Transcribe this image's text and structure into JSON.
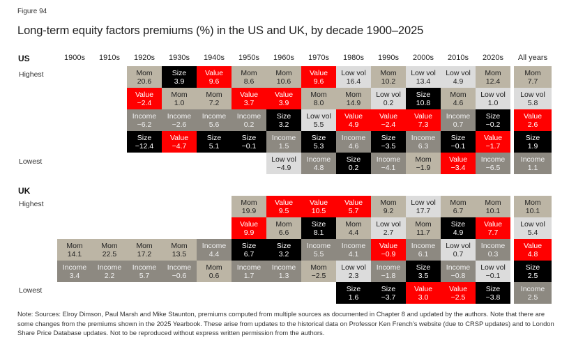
{
  "figure_label": "Figure 94",
  "title": "Long-term equity factors premiums (%) in the US and UK, by decade 1900–2025",
  "factor_colors": {
    "Mom": {
      "bg": "#bcb5a5",
      "fg": "#222222"
    },
    "Value": {
      "bg": "#ff0000",
      "fg": "#ffffff"
    },
    "Size": {
      "bg": "#000000",
      "fg": "#ffffff"
    },
    "Income": {
      "bg": "#8d8981",
      "fg": "#f0f0f0"
    },
    "Low vol": {
      "bg": "#dcdcdc",
      "fg": "#222222"
    }
  },
  "rank_labels": {
    "highest": "Highest",
    "lowest": "Lowest"
  },
  "note": "Note: Sources: Elroy Dimson, Paul Marsh and Mike Staunton, premiums computed from multiple sources as documented in Chapter 8 and updated by the authors. Note that there are some changes from the premiums shown in the 2025 Yearbook. These arise from updates to the historical data on Professor Ken French’s website (due to CRSP updates) and to London Share Price Database updates. Not to be reproduced without express written permission from the authors.",
  "chart_data": {
    "type": "table",
    "title": "Long-term equity factors premiums (%) in the US and UK, by decade 1900–2025",
    "columns": [
      "1900s",
      "1910s",
      "1920s",
      "1930s",
      "1940s",
      "1950s",
      "1960s",
      "1970s",
      "1980s",
      "1990s",
      "2000s",
      "2010s",
      "2020s",
      "All years"
    ],
    "row_order": "ranked highest (top) to lowest (bottom), 5 ranks",
    "regions": [
      {
        "name": "US",
        "columns": [
          [
            null,
            null,
            null,
            null,
            null
          ],
          [
            null,
            null,
            null,
            null,
            null
          ],
          [
            {
              "f": "Mom",
              "v": "20.6"
            },
            {
              "f": "Value",
              "v": "−2.4"
            },
            {
              "f": "Income",
              "v": "−6.2"
            },
            {
              "f": "Size",
              "v": "−12.4"
            },
            null
          ],
          [
            {
              "f": "Size",
              "v": "3.9"
            },
            {
              "f": "Mom",
              "v": "1.0"
            },
            {
              "f": "Income",
              "v": "−2.6"
            },
            {
              "f": "Value",
              "v": "−4.7"
            },
            null
          ],
          [
            {
              "f": "Value",
              "v": "9.6"
            },
            {
              "f": "Mom",
              "v": "7.2"
            },
            {
              "f": "Income",
              "v": "5.6"
            },
            {
              "f": "Size",
              "v": "5.1"
            },
            null
          ],
          [
            {
              "f": "Mom",
              "v": "8.6"
            },
            {
              "f": "Value",
              "v": "3.7"
            },
            {
              "f": "Income",
              "v": "0.2"
            },
            {
              "f": "Size",
              "v": "−0.1"
            },
            null
          ],
          [
            {
              "f": "Mom",
              "v": "10.6"
            },
            {
              "f": "Value",
              "v": "3.9"
            },
            {
              "f": "Size",
              "v": "3.2"
            },
            {
              "f": "Income",
              "v": "1.5"
            },
            {
              "f": "Low vol",
              "v": "−4.9"
            }
          ],
          [
            {
              "f": "Value",
              "v": "9.6"
            },
            {
              "f": "Mom",
              "v": "8.0"
            },
            {
              "f": "Low vol",
              "v": "5.5"
            },
            {
              "f": "Size",
              "v": "5.3"
            },
            {
              "f": "Income",
              "v": "4.8"
            }
          ],
          [
            {
              "f": "Low vol",
              "v": "16.4"
            },
            {
              "f": "Mom",
              "v": "14.9"
            },
            {
              "f": "Value",
              "v": "4.9"
            },
            {
              "f": "Income",
              "v": "4.6"
            },
            {
              "f": "Size",
              "v": "0.2"
            }
          ],
          [
            {
              "f": "Mom",
              "v": "10.2"
            },
            {
              "f": "Low vol",
              "v": "0.2"
            },
            {
              "f": "Value",
              "v": "−2.4"
            },
            {
              "f": "Size",
              "v": "−3.5"
            },
            {
              "f": "Income",
              "v": "−4.1"
            }
          ],
          [
            {
              "f": "Low vol",
              "v": "13.4"
            },
            {
              "f": "Size",
              "v": "10.8"
            },
            {
              "f": "Value",
              "v": "7.3"
            },
            {
              "f": "Income",
              "v": "6.3"
            },
            {
              "f": "Mom",
              "v": "−1.9"
            }
          ],
          [
            {
              "f": "Low vol",
              "v": "4.9"
            },
            {
              "f": "Mom",
              "v": "4.6"
            },
            {
              "f": "Income",
              "v": "0.7"
            },
            {
              "f": "Size",
              "v": "−0.1"
            },
            {
              "f": "Value",
              "v": "−3.4"
            }
          ],
          [
            {
              "f": "Mom",
              "v": "12.4"
            },
            {
              "f": "Low vol",
              "v": "1.0"
            },
            {
              "f": "Size",
              "v": "−0.2"
            },
            {
              "f": "Value",
              "v": "−1.7"
            },
            {
              "f": "Income",
              "v": "−6.5"
            }
          ],
          [
            {
              "f": "Mom",
              "v": "7.7"
            },
            {
              "f": "Low vol",
              "v": "5.8"
            },
            {
              "f": "Value",
              "v": "2.6"
            },
            {
              "f": "Size",
              "v": "1.9"
            },
            {
              "f": "Income",
              "v": "1.1"
            }
          ]
        ]
      },
      {
        "name": "UK",
        "columns": [
          [
            null,
            null,
            {
              "f": "Mom",
              "v": "14.1"
            },
            {
              "f": "Income",
              "v": "3.4"
            },
            null
          ],
          [
            null,
            null,
            {
              "f": "Mom",
              "v": "22.5"
            },
            {
              "f": "Income",
              "v": "2.2"
            },
            null
          ],
          [
            null,
            null,
            {
              "f": "Mom",
              "v": "17.2"
            },
            {
              "f": "Income",
              "v": "5.7"
            },
            null
          ],
          [
            null,
            null,
            {
              "f": "Mom",
              "v": "13.5"
            },
            {
              "f": "Income",
              "v": "−0.6"
            },
            null
          ],
          [
            null,
            null,
            {
              "f": "Income",
              "v": "4.4"
            },
            {
              "f": "Mom",
              "v": "0.6"
            },
            null
          ],
          [
            {
              "f": "Mom",
              "v": "19.9"
            },
            {
              "f": "Value",
              "v": "9.9"
            },
            {
              "f": "Size",
              "v": "6.7"
            },
            {
              "f": "Income",
              "v": "1.7"
            },
            null
          ],
          [
            {
              "f": "Value",
              "v": "9.5"
            },
            {
              "f": "Mom",
              "v": "6.6"
            },
            {
              "f": "Size",
              "v": "3.2"
            },
            {
              "f": "Income",
              "v": "1.3"
            },
            null
          ],
          [
            {
              "f": "Value",
              "v": "10.5"
            },
            {
              "f": "Size",
              "v": "8.1"
            },
            {
              "f": "Income",
              "v": "5.5"
            },
            {
              "f": "Mom",
              "v": "−2.5"
            },
            null
          ],
          [
            {
              "f": "Value",
              "v": "5.7"
            },
            {
              "f": "Mom",
              "v": "4.4"
            },
            {
              "f": "Income",
              "v": "4.1"
            },
            {
              "f": "Low vol",
              "v": "2.3"
            },
            {
              "f": "Size",
              "v": "1.6"
            }
          ],
          [
            {
              "f": "Mom",
              "v": "9.2"
            },
            {
              "f": "Low vol",
              "v": "2.7"
            },
            {
              "f": "Value",
              "v": "−0.9"
            },
            {
              "f": "Income",
              "v": "−1.8"
            },
            {
              "f": "Size",
              "v": "−3.7"
            }
          ],
          [
            {
              "f": "Low vol",
              "v": "17.7"
            },
            {
              "f": "Mom",
              "v": "11.7"
            },
            {
              "f": "Income",
              "v": "6.1"
            },
            {
              "f": "Size",
              "v": "3.5"
            },
            {
              "f": "Value",
              "v": "3.0"
            }
          ],
          [
            {
              "f": "Mom",
              "v": "6.7"
            },
            {
              "f": "Size",
              "v": "4.9"
            },
            {
              "f": "Low vol",
              "v": "0.7"
            },
            {
              "f": "Income",
              "v": "−0.8"
            },
            {
              "f": "Value",
              "v": "−2.5"
            }
          ],
          [
            {
              "f": "Mom",
              "v": "10.1"
            },
            {
              "f": "Value",
              "v": "7.7"
            },
            {
              "f": "Income",
              "v": "0.3"
            },
            {
              "f": "Low vol",
              "v": "−0.1"
            },
            {
              "f": "Size",
              "v": "−3.8"
            }
          ],
          [
            {
              "f": "Mom",
              "v": "10.1"
            },
            {
              "f": "Low vol",
              "v": "5.4"
            },
            {
              "f": "Value",
              "v": "4.8"
            },
            {
              "f": "Size",
              "v": "2.5"
            },
            {
              "f": "Income",
              "v": "2.5"
            }
          ]
        ]
      }
    ]
  }
}
